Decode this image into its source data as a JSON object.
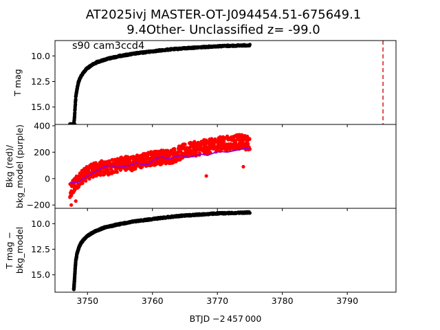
{
  "figure": {
    "title_line1": "AT2025ivj  MASTER-OT-J094454.51-675649.1",
    "title_line2": "9.4Other- Unclassified z= -99.0",
    "xlabel": "BTJD −2 457 000"
  },
  "chart_data": [
    {
      "type": "scatter",
      "panel": "top",
      "ylabel": "T mag",
      "annotation": "s90 cam3ccd4",
      "xlim": [
        3745.0,
        3797.5
      ],
      "ylim": [
        16.7,
        8.5
      ],
      "y_inverted": true,
      "xticks": [
        3750,
        3760,
        3770,
        3780,
        3790
      ],
      "yticks": [
        10.0,
        12.5,
        15.0
      ],
      "ytick_labels": [
        "10.0",
        "12.5",
        "15.0"
      ],
      "series": [
        {
          "color": "#000000",
          "x": [
            3747.3,
            3747.6,
            3747.9,
            3748.0,
            3748.1,
            3748.2,
            3748.4,
            3748.6,
            3748.9,
            3749.3,
            3749.8,
            3750.5,
            3751.5,
            3753.0,
            3755.0,
            3757.5,
            3760.0,
            3762.5,
            3765.0,
            3767.5,
            3770.0,
            3772.5,
            3775.0
          ],
          "y": [
            16.7,
            16.7,
            16.7,
            16.0,
            15.0,
            14.0,
            13.2,
            12.6,
            12.1,
            11.7,
            11.3,
            10.95,
            10.6,
            10.3,
            10.0,
            9.75,
            9.55,
            9.38,
            9.25,
            9.15,
            9.05,
            9.0,
            8.95
          ]
        }
      ],
      "vline": {
        "x": 3795.5,
        "color": "#d62728",
        "style": "dashed"
      }
    },
    {
      "type": "scatter",
      "panel": "middle",
      "ylabel": "Bkg (red)/\nbkg_model (purple)",
      "xlim": [
        3745.0,
        3797.5
      ],
      "ylim": [
        -225,
        410
      ],
      "xticks": [
        3750,
        3760,
        3770,
        3780,
        3790
      ],
      "yticks": [
        -200,
        0,
        200,
        400
      ],
      "ytick_labels": [
        "−200",
        "0",
        "200",
        "400"
      ],
      "series": [
        {
          "color": "#ff0000",
          "x": [
            3747.3,
            3748.0,
            3749.0,
            3750.0,
            3751.0,
            3752.0,
            3753.0,
            3754.0,
            3755.0,
            3756.0,
            3757.0,
            3758.0,
            3759.0,
            3760.0,
            3761.0,
            3762.0,
            3763.0,
            3764.0,
            3765.0,
            3766.0,
            3767.0,
            3768.0,
            3769.0,
            3770.0,
            3771.0,
            3772.0,
            3773.0,
            3774.0,
            3775.0
          ],
          "y": [
            -90,
            -40,
            10,
            40,
            70,
            80,
            75,
            95,
            110,
            120,
            115,
            130,
            140,
            155,
            160,
            165,
            170,
            190,
            210,
            220,
            230,
            240,
            245,
            260,
            265,
            270,
            280,
            275,
            265
          ]
        },
        {
          "color": "#9400d3",
          "x": [
            3747.3,
            3748.5,
            3750.0,
            3751.5,
            3752.5,
            3753.5,
            3754.5,
            3755.5,
            3756.5,
            3757.5,
            3758.5,
            3759.5,
            3760.5,
            3761.5,
            3762.5,
            3763.5,
            3764.5,
            3765.5,
            3766.5,
            3767.5,
            3768.5,
            3769.5,
            3770.5,
            3771.5,
            3772.5,
            3773.5,
            3774.5,
            3775.0
          ],
          "y": [
            -30,
            -30,
            20,
            60,
            90,
            100,
            85,
            90,
            100,
            120,
            105,
            110,
            150,
            165,
            150,
            165,
            175,
            160,
            170,
            185,
            175,
            195,
            205,
            200,
            210,
            220,
            230,
            225
          ]
        }
      ],
      "outliers": {
        "x": [
          3768.3,
          3774.0,
          3747.5,
          3748.2
        ],
        "y": [
          20,
          90,
          -200,
          -170
        ]
      }
    },
    {
      "type": "scatter",
      "panel": "bottom",
      "ylabel": "T mag −\nbkg_model",
      "xlim": [
        3745.0,
        3797.5
      ],
      "ylim": [
        16.7,
        8.5
      ],
      "y_inverted": true,
      "xticks": [
        3750,
        3760,
        3770,
        3780,
        3790
      ],
      "xtick_labels": [
        "3750",
        "3760",
        "3770",
        "3780",
        "3790"
      ],
      "yticks": [
        10.0,
        12.5,
        15.0
      ],
      "ytick_labels": [
        "10.0",
        "12.5",
        "15.0"
      ],
      "series": [
        {
          "color": "#000000",
          "x": [
            3747.9,
            3748.0,
            3748.1,
            3748.2,
            3748.4,
            3748.7,
            3749.0,
            3749.5,
            3750.2,
            3751.0,
            3752.5,
            3754.5,
            3757.0,
            3760.0,
            3762.5,
            3765.0,
            3767.5,
            3770.0,
            3772.5,
            3775.0
          ],
          "y": [
            16.4,
            15.5,
            14.5,
            13.6,
            12.9,
            12.3,
            11.9,
            11.5,
            11.1,
            10.8,
            10.4,
            10.1,
            9.8,
            9.55,
            9.35,
            9.2,
            9.1,
            9.0,
            8.95,
            8.9
          ]
        }
      ]
    }
  ]
}
